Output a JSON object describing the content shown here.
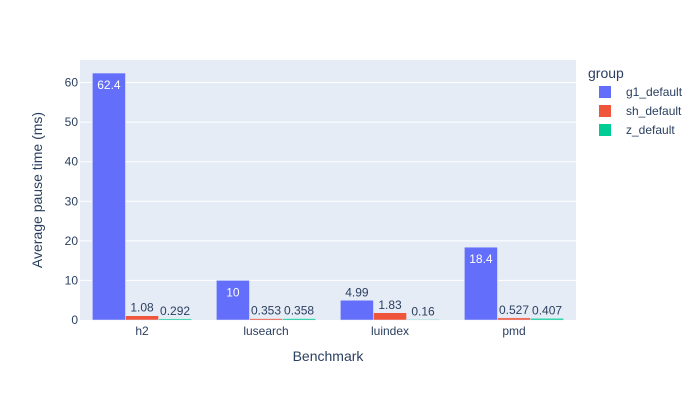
{
  "chart_data": {
    "type": "bar",
    "barmode": "group",
    "categories": [
      "h2",
      "lusearch",
      "luindex",
      "pmd"
    ],
    "series": [
      {
        "name": "g1_default",
        "color": "#636efa",
        "values": [
          62.4,
          10,
          4.99,
          18.4
        ],
        "labels": [
          "62.4",
          "10",
          "4.99",
          "18.4"
        ]
      },
      {
        "name": "sh_default",
        "color": "#ef553b",
        "values": [
          1.08,
          0.353,
          1.83,
          0.527
        ],
        "labels": [
          "1.08",
          "0.353",
          "1.83",
          "0.527"
        ]
      },
      {
        "name": "z_default",
        "color": "#00cc96",
        "values": [
          0.292,
          0.358,
          0.16,
          0.407
        ],
        "labels": [
          "0.292",
          "0.358",
          "0.16",
          "0.407"
        ]
      }
    ],
    "xlabel": "Benchmark",
    "ylabel": "Average pause time (ms)",
    "ylim": [
      0,
      65.7
    ],
    "yticks": [
      0,
      10,
      20,
      30,
      40,
      50,
      60
    ],
    "grid": true,
    "plot_background": "#e5ecf6",
    "legend": {
      "title": "group",
      "placement": "top-right"
    }
  }
}
